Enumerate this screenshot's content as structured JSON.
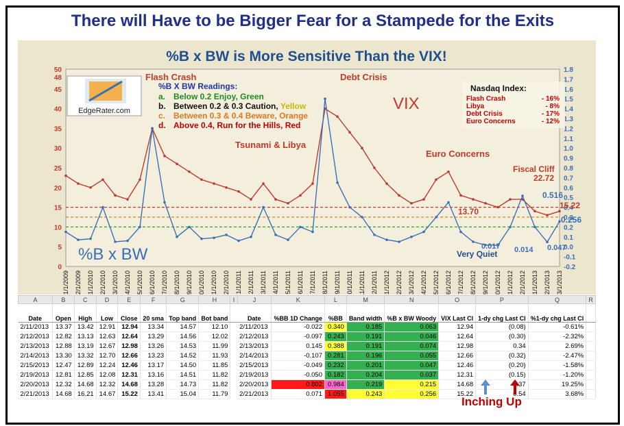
{
  "banner": "There will Have to be Bigger Fear for a Stampede for the Exits",
  "chart_data": {
    "type": "line",
    "title": "%B x BW is More Sensitive Than the VIX!",
    "x": [
      "11/1/2009",
      "12/1/2009",
      "1/1/2010",
      "2/1/2010",
      "3/1/2010",
      "4/1/2010",
      "5/1/2010",
      "6/1/2010",
      "7/1/2010",
      "8/1/2010",
      "9/1/2010",
      "10/1/2010",
      "11/1/2010",
      "12/1/2010",
      "1/1/2011",
      "2/1/2011",
      "3/1/2011",
      "4/1/2011",
      "5/1/2011",
      "6/1/2011",
      "7/1/2011",
      "8/1/2011",
      "9/1/2011",
      "10/1/2011",
      "11/1/2011",
      "12/1/2011",
      "1/1/2012",
      "2/1/2012",
      "3/1/2012",
      "4/1/2012",
      "5/1/2012",
      "6/1/2012",
      "7/1/2012",
      "8/1/2012",
      "9/1/2012",
      "10/1/2012",
      "11/1/2012",
      "12/1/2012",
      "1/1/2013",
      "2/1/2013",
      "3/1/2013"
    ],
    "y_left_lim": [
      0,
      50
    ],
    "y_left_ticks": [
      "0",
      "5",
      "10",
      "15",
      "20",
      "25",
      "30",
      "35",
      "40",
      "45",
      "48",
      "50"
    ],
    "y_right_lim": [
      -0.2,
      1.8
    ],
    "y_right_ticks": [
      "-0.2",
      "-0.1",
      "0.0",
      "0.1",
      "0.2",
      "0.3",
      "0.4",
      "0.5",
      "0.6",
      "0.7",
      "0.8",
      "0.9",
      "1.0",
      "1.1",
      "1.2",
      "1.3",
      "1.4",
      "1.5",
      "1.6",
      "1.7",
      "1.8"
    ],
    "series": [
      {
        "name": "VIX",
        "color": "#c0392b",
        "axis": "left",
        "values": [
          23,
          21,
          20,
          22,
          18,
          17,
          22,
          35,
          28,
          26,
          24,
          22,
          21,
          20,
          19,
          17,
          21,
          17,
          16,
          18,
          21,
          40,
          38,
          34,
          30,
          25,
          21,
          18,
          16,
          17,
          22,
          24,
          18,
          17,
          16,
          15,
          17,
          17,
          14,
          13,
          14
        ]
      },
      {
        "name": "%B x BW",
        "color": "#3a6fb8",
        "axis": "right",
        "values": [
          0.15,
          0.07,
          0.08,
          0.4,
          0.05,
          0.06,
          0.2,
          1.2,
          0.45,
          0.1,
          0.2,
          0.08,
          0.09,
          0.12,
          0.06,
          0.1,
          0.4,
          0.12,
          0.07,
          0.2,
          0.15,
          1.5,
          0.65,
          0.4,
          0.3,
          0.12,
          0.07,
          0.05,
          0.1,
          0.15,
          0.3,
          0.45,
          0.15,
          0.05,
          0.017,
          0.014,
          0.2,
          0.516,
          0.2,
          0.047,
          0.256
        ]
      }
    ],
    "thresholds": [
      {
        "value": 0.2,
        "color": "#22aa22"
      },
      {
        "value": 0.3,
        "color": "#d08020"
      },
      {
        "value": 0.4,
        "color": "#c0392b"
      }
    ],
    "annotations": {
      "flash_crash": "Flash Crash",
      "debt_crisis": "Debt Crisis",
      "tsunami": "Tsunami  & Libya",
      "euro": "Euro Concerns",
      "fiscal": "Fiscal Cliff",
      "vix_label": "VIX",
      "bbw_label": "%B x BW",
      "very_quiet": "Very Quiet",
      "v2272": "22.72",
      "v0516": "0.516",
      "v1522": "15.22",
      "v1370": "13.70",
      "v0256": "0.256",
      "v0017": "0.017",
      "v0014": "0.014",
      "v0047": "0.047",
      "logo": "EdgeRater.com"
    },
    "readings": {
      "title": "%B X BW Readings:",
      "items": [
        {
          "key": "a.",
          "text": "Below 0.2 Enjoy, Green",
          "color": "#1f8a1f"
        },
        {
          "key": "b.",
          "text": "Between 0.2 & 0.3 Caution, ",
          "extra": "Yellow",
          "color": "#111111",
          "extra_color": "#c9b800"
        },
        {
          "key": "c.",
          "text": "Between 0.3 & 0.4 Beware, Orange",
          "color": "#e07820"
        },
        {
          "key": "d.",
          "text": "Above 0.4, Run for the Hills, Red",
          "color": "#c00000"
        }
      ]
    },
    "nasdaq": {
      "title": "Nasdaq Index:",
      "rows": [
        {
          "label": "Flash Crash",
          "value": "- 16%"
        },
        {
          "label": "Libya",
          "value": "-   8%"
        },
        {
          "label": "Debt Crisis",
          "value": "- 17%"
        },
        {
          "label": "Euro Concerns",
          "value": "- 12%"
        }
      ]
    }
  },
  "table": {
    "col_letters": [
      "A",
      "B",
      "C",
      "D",
      "E",
      "F",
      "G",
      "H",
      "I",
      "J",
      "K",
      "L",
      "M",
      "N",
      "O",
      "P",
      "Q",
      "R"
    ],
    "headers_left": [
      "Date",
      "Open",
      "High",
      "Low",
      "Close",
      "20 sma",
      "Top band",
      "Bot band"
    ],
    "headers_right": [
      "Date",
      "%BB 1D Change",
      "%BB",
      "Band width",
      "%B x BW Woody",
      "VIX Last Cl",
      "1-dy chg Last Cl",
      "%1-dy chg Last Cl"
    ],
    "rows": [
      {
        "l": [
          "2/11/2013",
          "13.37",
          "13.42",
          "12.91",
          "12.94",
          "13.34",
          "14.57",
          "12.10"
        ],
        "r": [
          "2/11/2013",
          "-0.022",
          "0.340",
          "0.185",
          "0.063",
          "12.94",
          "(0.08)",
          "-0.61%"
        ],
        "c": [
          "cy",
          "cg",
          "cg"
        ]
      },
      {
        "l": [
          "2/12/2013",
          "12.82",
          "13.13",
          "12.63",
          "12.64",
          "13.29",
          "14.56",
          "12.02"
        ],
        "r": [
          "2/12/2013",
          "-0.097",
          "0.243",
          "0.191",
          "0.046",
          "12.64",
          "(0.30)",
          "-2.32%"
        ],
        "c": [
          "cg",
          "cg",
          "cg"
        ]
      },
      {
        "l": [
          "2/13/2013",
          "12.88",
          "13.19",
          "12.67",
          "12.98",
          "13.26",
          "14.53",
          "11.99"
        ],
        "r": [
          "2/13/2013",
          "0.145",
          "0.388",
          "0.191",
          "0.074",
          "12.98",
          "0.34",
          "2.69%"
        ],
        "c": [
          "cy",
          "cg",
          "cg"
        ]
      },
      {
        "l": [
          "2/14/2013",
          "13.30",
          "13.32",
          "12.70",
          "12.66",
          "13.23",
          "14.52",
          "11.93"
        ],
        "r": [
          "2/14/2013",
          "-0.107",
          "0.281",
          "0.196",
          "0.055",
          "12.66",
          "(0.32)",
          "-2.47%"
        ],
        "c": [
          "cg",
          "cg",
          "cg"
        ]
      },
      {
        "l": [
          "2/15/2013",
          "12.47",
          "12.89",
          "12.24",
          "12.46",
          "13.17",
          "14.50",
          "11.85"
        ],
        "r": [
          "2/15/2013",
          "-0.049",
          "0.232",
          "0.201",
          "0.047",
          "12.46",
          "(0.20)",
          "-1.58%"
        ],
        "c": [
          "cg",
          "cg",
          "cg"
        ]
      },
      {
        "l": [
          "2/19/2013",
          "12.81",
          "12.85",
          "12.08",
          "12.31",
          "13.16",
          "14.51",
          "11.82"
        ],
        "r": [
          "2/19/2013",
          "-0.050",
          "0.182",
          "0.204",
          "0.037",
          "12.31",
          "(0.15)",
          "-1.20%"
        ],
        "c": [
          "cg",
          "cg",
          "cg"
        ]
      },
      {
        "l": [
          "2/20/2013",
          "12.32",
          "14.68",
          "12.32",
          "14.68",
          "13.28",
          "14.73",
          "11.82"
        ],
        "r": [
          "2/20/2013",
          "0.802",
          "0.984",
          "0.219",
          "0.215",
          "14.68",
          "2.37",
          "19.25%"
        ],
        "c": [
          "cp",
          "cg",
          "cy"
        ],
        "kred": true
      },
      {
        "l": [
          "2/21/2013",
          "14.68",
          "16.21",
          "14.67",
          "15.22",
          "13.41",
          "15.04",
          "11.79"
        ],
        "r": [
          "2/21/2013",
          "0.071",
          "1.055",
          "0.243",
          "0.256",
          "15.22",
          "0.54",
          "3.68%"
        ],
        "c": [
          "cr",
          "cy",
          "cy"
        ]
      }
    ]
  },
  "footer_note": "Inching Up"
}
